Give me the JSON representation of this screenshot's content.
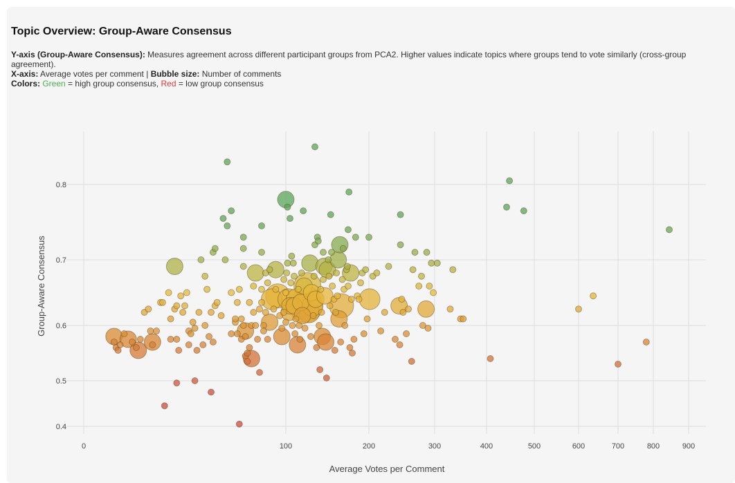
{
  "title": "Topic Overview: Group-Aware Consensus",
  "description": {
    "y_label": "Y-axis (Group-Aware Consensus):",
    "y_text": "Measures agreement across different participant groups from PCA2. Higher values indicate topics where groups tend to vote similarly (cross-group agreement).",
    "x_label": "X-axis:",
    "x_text": "Average votes per comment |",
    "size_label": "Bubble size:",
    "size_text": "Number of comments",
    "colors_label": "Colors:",
    "green_word": "Green",
    "green_text": "= high group consensus,",
    "red_word": "Red",
    "red_text": "= low group consensus"
  },
  "colors": {
    "green": "#5aa55a",
    "yellow": "#e6b93a",
    "orange": "#d98a33",
    "red": "#cc4b3e",
    "grid": "#dddddd"
  },
  "chart_data": {
    "type": "scatter",
    "xlabel": "Average Votes per Comment",
    "ylabel": "Group-Aware Consensus",
    "x_ticks": [
      0,
      100,
      200,
      300,
      400,
      500,
      600,
      700,
      800,
      900
    ],
    "y_ticks": [
      0.4,
      0.5,
      0.6,
      0.7,
      0.8
    ],
    "y_range": [
      0.38,
      0.87
    ],
    "grid": true,
    "points": [
      {
        "x": 15,
        "y": 0.58,
        "size": 2
      },
      {
        "x": 15,
        "y": 0.57,
        "size": 1
      },
      {
        "x": 16,
        "y": 0.56,
        "size": 1
      },
      {
        "x": 17,
        "y": 0.555,
        "size": 1
      },
      {
        "x": 18,
        "y": 0.565,
        "size": 1
      },
      {
        "x": 20,
        "y": 0.585,
        "size": 1
      },
      {
        "x": 22,
        "y": 0.575,
        "size": 2
      },
      {
        "x": 24,
        "y": 0.57,
        "size": 1
      },
      {
        "x": 26,
        "y": 0.56,
        "size": 1
      },
      {
        "x": 27,
        "y": 0.555,
        "size": 2
      },
      {
        "x": 28,
        "y": 0.575,
        "size": 1
      },
      {
        "x": 30,
        "y": 0.62,
        "size": 1
      },
      {
        "x": 32,
        "y": 0.625,
        "size": 1
      },
      {
        "x": 33,
        "y": 0.59,
        "size": 1
      },
      {
        "x": 34,
        "y": 0.565,
        "size": 1
      },
      {
        "x": 34,
        "y": 0.57,
        "size": 2
      },
      {
        "x": 36,
        "y": 0.59,
        "size": 1
      },
      {
        "x": 38,
        "y": 0.635,
        "size": 1
      },
      {
        "x": 39,
        "y": 0.635,
        "size": 1
      },
      {
        "x": 40,
        "y": 0.445,
        "size": 1
      },
      {
        "x": 42,
        "y": 0.65,
        "size": 1
      },
      {
        "x": 43,
        "y": 0.61,
        "size": 1
      },
      {
        "x": 43,
        "y": 0.575,
        "size": 1
      },
      {
        "x": 45,
        "y": 0.625,
        "size": 1
      },
      {
        "x": 45,
        "y": 0.69,
        "size": 2
      },
      {
        "x": 46,
        "y": 0.63,
        "size": 1
      },
      {
        "x": 46,
        "y": 0.575,
        "size": 1
      },
      {
        "x": 46,
        "y": 0.495,
        "size": 1
      },
      {
        "x": 47,
        "y": 0.555,
        "size": 1
      },
      {
        "x": 48,
        "y": 0.645,
        "size": 1
      },
      {
        "x": 49,
        "y": 0.62,
        "size": 1
      },
      {
        "x": 50,
        "y": 0.63,
        "size": 1
      },
      {
        "x": 51,
        "y": 0.65,
        "size": 1
      },
      {
        "x": 52,
        "y": 0.59,
        "size": 1
      },
      {
        "x": 52,
        "y": 0.565,
        "size": 1
      },
      {
        "x": 53,
        "y": 0.585,
        "size": 1
      },
      {
        "x": 54,
        "y": 0.605,
        "size": 1
      },
      {
        "x": 55,
        "y": 0.595,
        "size": 1
      },
      {
        "x": 55,
        "y": 0.5,
        "size": 1
      },
      {
        "x": 56,
        "y": 0.555,
        "size": 1
      },
      {
        "x": 57,
        "y": 0.62,
        "size": 1
      },
      {
        "x": 58,
        "y": 0.7,
        "size": 1
      },
      {
        "x": 59,
        "y": 0.565,
        "size": 1
      },
      {
        "x": 60,
        "y": 0.6,
        "size": 1
      },
      {
        "x": 60,
        "y": 0.675,
        "size": 1
      },
      {
        "x": 61,
        "y": 0.655,
        "size": 1
      },
      {
        "x": 62,
        "y": 0.58,
        "size": 1
      },
      {
        "x": 63,
        "y": 0.475,
        "size": 1
      },
      {
        "x": 63,
        "y": 0.62,
        "size": 1
      },
      {
        "x": 64,
        "y": 0.57,
        "size": 1
      },
      {
        "x": 64,
        "y": 0.71,
        "size": 1
      },
      {
        "x": 65,
        "y": 0.715,
        "size": 1
      },
      {
        "x": 65,
        "y": 0.63,
        "size": 1
      },
      {
        "x": 66,
        "y": 0.635,
        "size": 1
      },
      {
        "x": 68,
        "y": 0.615,
        "size": 1
      },
      {
        "x": 69,
        "y": 0.755,
        "size": 1
      },
      {
        "x": 70,
        "y": 0.7,
        "size": 1
      },
      {
        "x": 71,
        "y": 0.745,
        "size": 1
      },
      {
        "x": 71,
        "y": 0.83,
        "size": 1
      },
      {
        "x": 73,
        "y": 0.765,
        "size": 1
      },
      {
        "x": 73,
        "y": 0.65,
        "size": 1
      },
      {
        "x": 73,
        "y": 0.585,
        "size": 1
      },
      {
        "x": 75,
        "y": 0.605,
        "size": 1
      },
      {
        "x": 75,
        "y": 0.61,
        "size": 1
      },
      {
        "x": 76,
        "y": 0.635,
        "size": 1
      },
      {
        "x": 76,
        "y": 0.585,
        "size": 1
      },
      {
        "x": 77,
        "y": 0.405,
        "size": 1
      },
      {
        "x": 77,
        "y": 0.655,
        "size": 1
      },
      {
        "x": 78,
        "y": 0.61,
        "size": 1
      },
      {
        "x": 78,
        "y": 0.575,
        "size": 1
      },
      {
        "x": 79,
        "y": 0.73,
        "size": 1
      },
      {
        "x": 79,
        "y": 0.715,
        "size": 1
      },
      {
        "x": 79,
        "y": 0.69,
        "size": 1
      },
      {
        "x": 79,
        "y": 0.6,
        "size": 1
      },
      {
        "x": 80,
        "y": 0.545,
        "size": 1
      },
      {
        "x": 80,
        "y": 0.59,
        "size": 2
      },
      {
        "x": 80,
        "y": 0.58,
        "size": 1
      },
      {
        "x": 81,
        "y": 0.535,
        "size": 1
      },
      {
        "x": 81,
        "y": 0.55,
        "size": 1
      },
      {
        "x": 82,
        "y": 0.635,
        "size": 1
      },
      {
        "x": 82,
        "y": 0.56,
        "size": 1
      },
      {
        "x": 83,
        "y": 0.54,
        "size": 2
      },
      {
        "x": 83,
        "y": 0.6,
        "size": 1
      },
      {
        "x": 84,
        "y": 0.62,
        "size": 1
      },
      {
        "x": 84,
        "y": 0.66,
        "size": 1
      },
      {
        "x": 85,
        "y": 0.6,
        "size": 1
      },
      {
        "x": 85,
        "y": 0.68,
        "size": 2
      },
      {
        "x": 86,
        "y": 0.575,
        "size": 1
      },
      {
        "x": 87,
        "y": 0.515,
        "size": 1
      },
      {
        "x": 87,
        "y": 0.625,
        "size": 1
      },
      {
        "x": 88,
        "y": 0.745,
        "size": 1
      },
      {
        "x": 88,
        "y": 0.71,
        "size": 1
      },
      {
        "x": 88,
        "y": 0.635,
        "size": 1
      },
      {
        "x": 88,
        "y": 0.655,
        "size": 1
      },
      {
        "x": 89,
        "y": 0.6,
        "size": 1
      },
      {
        "x": 89,
        "y": 0.59,
        "size": 1
      },
      {
        "x": 90,
        "y": 0.68,
        "size": 1
      },
      {
        "x": 90,
        "y": 0.62,
        "size": 1
      },
      {
        "x": 91,
        "y": 0.665,
        "size": 1
      },
      {
        "x": 91,
        "y": 0.575,
        "size": 1
      },
      {
        "x": 92,
        "y": 0.685,
        "size": 1
      },
      {
        "x": 92,
        "y": 0.605,
        "size": 2
      },
      {
        "x": 93,
        "y": 0.64,
        "size": 3
      },
      {
        "x": 94,
        "y": 0.625,
        "size": 1
      },
      {
        "x": 95,
        "y": 0.655,
        "size": 1
      },
      {
        "x": 95,
        "y": 0.685,
        "size": 2
      },
      {
        "x": 96,
        "y": 0.645,
        "size": 4
      },
      {
        "x": 97,
        "y": 0.615,
        "size": 1
      },
      {
        "x": 98,
        "y": 0.595,
        "size": 1
      },
      {
        "x": 98,
        "y": 0.58,
        "size": 2
      },
      {
        "x": 99,
        "y": 0.62,
        "size": 1
      },
      {
        "x": 99,
        "y": 0.67,
        "size": 1
      },
      {
        "x": 100,
        "y": 0.65,
        "size": 1
      },
      {
        "x": 100,
        "y": 0.605,
        "size": 1
      },
      {
        "x": 100,
        "y": 0.78,
        "size": 2
      },
      {
        "x": 101,
        "y": 0.68,
        "size": 1
      },
      {
        "x": 102,
        "y": 0.77,
        "size": 1
      },
      {
        "x": 102,
        "y": 0.695,
        "size": 1
      },
      {
        "x": 103,
        "y": 0.64,
        "size": 3
      },
      {
        "x": 104,
        "y": 0.62,
        "size": 2
      },
      {
        "x": 105,
        "y": 0.755,
        "size": 1
      },
      {
        "x": 105,
        "y": 0.63,
        "size": 2
      },
      {
        "x": 106,
        "y": 0.665,
        "size": 1
      },
      {
        "x": 107,
        "y": 0.705,
        "size": 1
      },
      {
        "x": 108,
        "y": 0.6,
        "size": 1
      },
      {
        "x": 109,
        "y": 0.695,
        "size": 1
      },
      {
        "x": 110,
        "y": 0.675,
        "size": 1
      },
      {
        "x": 110,
        "y": 0.63,
        "size": 2
      },
      {
        "x": 111,
        "y": 0.585,
        "size": 1
      },
      {
        "x": 112,
        "y": 0.61,
        "size": 1
      },
      {
        "x": 113,
        "y": 0.64,
        "size": 3
      },
      {
        "x": 114,
        "y": 0.565,
        "size": 2
      },
      {
        "x": 115,
        "y": 0.655,
        "size": 1
      },
      {
        "x": 116,
        "y": 0.6,
        "size": 1
      },
      {
        "x": 117,
        "y": 0.575,
        "size": 1
      },
      {
        "x": 118,
        "y": 0.635,
        "size": 2
      },
      {
        "x": 119,
        "y": 0.68,
        "size": 1
      },
      {
        "x": 120,
        "y": 0.615,
        "size": 2
      },
      {
        "x": 121,
        "y": 0.765,
        "size": 1
      },
      {
        "x": 122,
        "y": 0.66,
        "size": 2
      },
      {
        "x": 123,
        "y": 0.595,
        "size": 1
      },
      {
        "x": 124,
        "y": 0.63,
        "size": 8
      },
      {
        "x": 126,
        "y": 0.66,
        "size": 5
      },
      {
        "x": 127,
        "y": 0.64,
        "size": 4
      },
      {
        "x": 128,
        "y": 0.62,
        "size": 3
      },
      {
        "x": 129,
        "y": 0.695,
        "size": 2
      },
      {
        "x": 130,
        "y": 0.58,
        "size": 1
      },
      {
        "x": 131,
        "y": 0.65,
        "size": 2
      },
      {
        "x": 132,
        "y": 0.63,
        "size": 3
      },
      {
        "x": 133,
        "y": 0.615,
        "size": 1
      },
      {
        "x": 134,
        "y": 0.675,
        "size": 1
      },
      {
        "x": 135,
        "y": 0.72,
        "size": 1
      },
      {
        "x": 135,
        "y": 0.85,
        "size": 1
      },
      {
        "x": 136,
        "y": 0.64,
        "size": 2
      },
      {
        "x": 137,
        "y": 0.56,
        "size": 1
      },
      {
        "x": 138,
        "y": 0.73,
        "size": 1
      },
      {
        "x": 139,
        "y": 0.725,
        "size": 1
      },
      {
        "x": 140,
        "y": 0.6,
        "size": 1
      },
      {
        "x": 141,
        "y": 0.52,
        "size": 1
      },
      {
        "x": 142,
        "y": 0.655,
        "size": 1
      },
      {
        "x": 143,
        "y": 0.62,
        "size": 1
      },
      {
        "x": 144,
        "y": 0.58,
        "size": 2
      },
      {
        "x": 145,
        "y": 0.67,
        "size": 1
      },
      {
        "x": 145,
        "y": 0.71,
        "size": 1
      },
      {
        "x": 146,
        "y": 0.69,
        "size": 2
      },
      {
        "x": 147,
        "y": 0.645,
        "size": 2
      },
      {
        "x": 148,
        "y": 0.57,
        "size": 2
      },
      {
        "x": 149,
        "y": 0.505,
        "size": 1
      },
      {
        "x": 150,
        "y": 0.685,
        "size": 2
      },
      {
        "x": 151,
        "y": 0.7,
        "size": 1
      },
      {
        "x": 152,
        "y": 0.675,
        "size": 1
      },
      {
        "x": 153,
        "y": 0.63,
        "size": 1
      },
      {
        "x": 154,
        "y": 0.76,
        "size": 1
      },
      {
        "x": 155,
        "y": 0.71,
        "size": 1
      },
      {
        "x": 156,
        "y": 0.66,
        "size": 1
      },
      {
        "x": 158,
        "y": 0.64,
        "size": 1
      },
      {
        "x": 159,
        "y": 0.555,
        "size": 1
      },
      {
        "x": 160,
        "y": 0.62,
        "size": 1
      },
      {
        "x": 161,
        "y": 0.68,
        "size": 1
      },
      {
        "x": 162,
        "y": 0.645,
        "size": 1
      },
      {
        "x": 163,
        "y": 0.7,
        "size": 2
      },
      {
        "x": 164,
        "y": 0.61,
        "size": 2
      },
      {
        "x": 165,
        "y": 0.72,
        "size": 2
      },
      {
        "x": 166,
        "y": 0.57,
        "size": 1
      },
      {
        "x": 167,
        "y": 0.63,
        "size": 4
      },
      {
        "x": 168,
        "y": 0.67,
        "size": 1
      },
      {
        "x": 169,
        "y": 0.715,
        "size": 1
      },
      {
        "x": 170,
        "y": 0.655,
        "size": 1
      },
      {
        "x": 171,
        "y": 0.6,
        "size": 1
      },
      {
        "x": 173,
        "y": 0.685,
        "size": 1
      },
      {
        "x": 174,
        "y": 0.69,
        "size": 1
      },
      {
        "x": 175,
        "y": 0.66,
        "size": 1
      },
      {
        "x": 175,
        "y": 0.74,
        "size": 1
      },
      {
        "x": 176,
        "y": 0.79,
        "size": 1
      },
      {
        "x": 177,
        "y": 0.56,
        "size": 1
      },
      {
        "x": 178,
        "y": 0.68,
        "size": 2
      },
      {
        "x": 179,
        "y": 0.64,
        "size": 1
      },
      {
        "x": 180,
        "y": 0.55,
        "size": 1
      },
      {
        "x": 182,
        "y": 0.575,
        "size": 1
      },
      {
        "x": 184,
        "y": 0.73,
        "size": 1
      },
      {
        "x": 186,
        "y": 0.645,
        "size": 1
      },
      {
        "x": 188,
        "y": 0.64,
        "size": 1
      },
      {
        "x": 190,
        "y": 0.665,
        "size": 1
      },
      {
        "x": 192,
        "y": 0.68,
        "size": 1
      },
      {
        "x": 194,
        "y": 0.585,
        "size": 1
      },
      {
        "x": 196,
        "y": 0.685,
        "size": 1
      },
      {
        "x": 198,
        "y": 0.61,
        "size": 1
      },
      {
        "x": 200,
        "y": 0.73,
        "size": 1
      },
      {
        "x": 201,
        "y": 0.64,
        "size": 3
      },
      {
        "x": 206,
        "y": 0.675,
        "size": 1
      },
      {
        "x": 212,
        "y": 0.68,
        "size": 1
      },
      {
        "x": 218,
        "y": 0.59,
        "size": 1
      },
      {
        "x": 224,
        "y": 0.62,
        "size": 1
      },
      {
        "x": 230,
        "y": 0.69,
        "size": 1
      },
      {
        "x": 240,
        "y": 0.575,
        "size": 1
      },
      {
        "x": 246,
        "y": 0.63,
        "size": 2
      },
      {
        "x": 247,
        "y": 0.565,
        "size": 1
      },
      {
        "x": 248,
        "y": 0.72,
        "size": 1
      },
      {
        "x": 248,
        "y": 0.76,
        "size": 1
      },
      {
        "x": 250,
        "y": 0.64,
        "size": 1
      },
      {
        "x": 252,
        "y": 0.62,
        "size": 1
      },
      {
        "x": 257,
        "y": 0.585,
        "size": 1
      },
      {
        "x": 260,
        "y": 0.625,
        "size": 1
      },
      {
        "x": 265,
        "y": 0.535,
        "size": 1
      },
      {
        "x": 267,
        "y": 0.685,
        "size": 1
      },
      {
        "x": 270,
        "y": 0.71,
        "size": 1
      },
      {
        "x": 276,
        "y": 0.66,
        "size": 1
      },
      {
        "x": 280,
        "y": 0.675,
        "size": 1
      },
      {
        "x": 282,
        "y": 0.6,
        "size": 1
      },
      {
        "x": 287,
        "y": 0.625,
        "size": 2
      },
      {
        "x": 288,
        "y": 0.71,
        "size": 1
      },
      {
        "x": 290,
        "y": 0.595,
        "size": 1
      },
      {
        "x": 292,
        "y": 0.66,
        "size": 1
      },
      {
        "x": 295,
        "y": 0.695,
        "size": 1
      },
      {
        "x": 298,
        "y": 0.65,
        "size": 1
      },
      {
        "x": 305,
        "y": 0.695,
        "size": 1
      },
      {
        "x": 330,
        "y": 0.625,
        "size": 1
      },
      {
        "x": 335,
        "y": 0.685,
        "size": 1
      },
      {
        "x": 350,
        "y": 0.61,
        "size": 1
      },
      {
        "x": 355,
        "y": 0.61,
        "size": 1
      },
      {
        "x": 408,
        "y": 0.54,
        "size": 1
      },
      {
        "x": 442,
        "y": 0.77,
        "size": 1
      },
      {
        "x": 448,
        "y": 0.805,
        "size": 1
      },
      {
        "x": 478,
        "y": 0.765,
        "size": 1
      },
      {
        "x": 600,
        "y": 0.625,
        "size": 1
      },
      {
        "x": 637,
        "y": 0.645,
        "size": 1
      },
      {
        "x": 700,
        "y": 0.53,
        "size": 1
      },
      {
        "x": 780,
        "y": 0.57,
        "size": 1
      },
      {
        "x": 845,
        "y": 0.74,
        "size": 1
      }
    ]
  }
}
